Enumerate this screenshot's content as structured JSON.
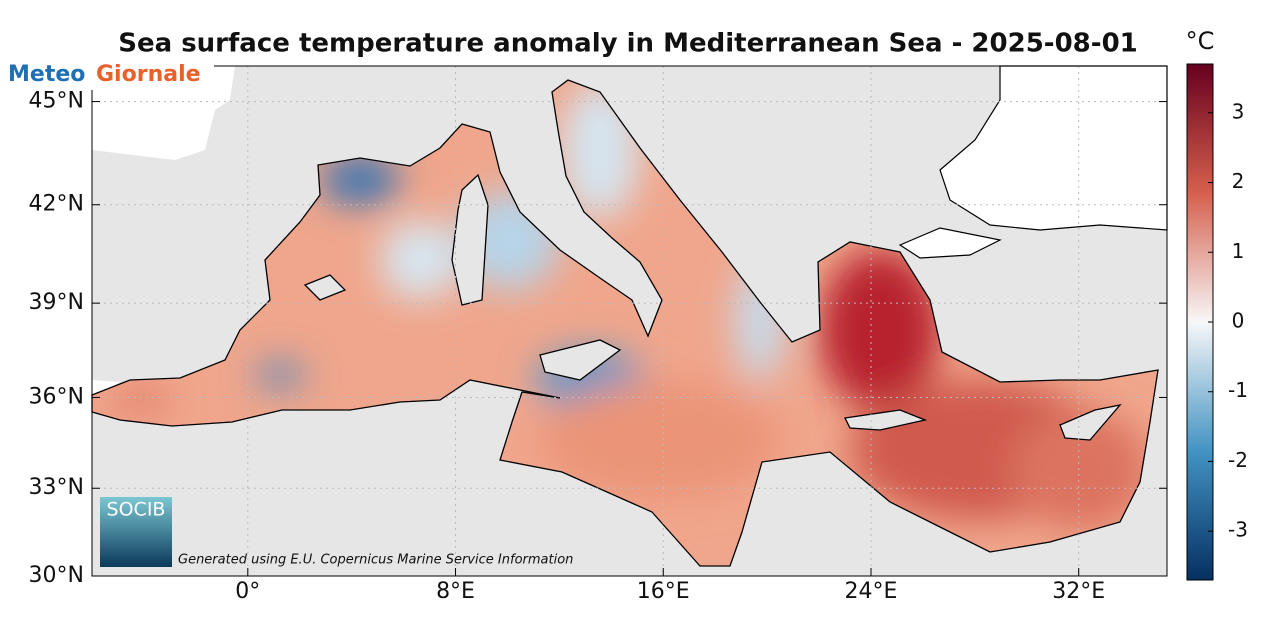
{
  "title": "Sea surface temperature anomaly in Mediterranean Sea - 2025-08-01",
  "logo": {
    "meteo": "Meteo",
    "giornale": "Giornale"
  },
  "map": {
    "projection": "mercator",
    "grid": true,
    "xlim": [
      -6,
      35.4
    ],
    "ylim": [
      30,
      46
    ],
    "xticks": [
      {
        "value": 0,
        "label": "0°"
      },
      {
        "value": 8,
        "label": "8°E"
      },
      {
        "value": 16,
        "label": "16°E"
      },
      {
        "value": 24,
        "label": "24°E"
      },
      {
        "value": 32,
        "label": "32°E"
      }
    ],
    "yticks": [
      {
        "value": 30,
        "label": "30°N"
      },
      {
        "value": 33,
        "label": "33°N"
      },
      {
        "value": 36,
        "label": "36°N"
      },
      {
        "value": 39,
        "label": "39°N"
      },
      {
        "value": 42,
        "label": "42°N"
      },
      {
        "value": 45,
        "label": "45°N"
      }
    ]
  },
  "colorbar": {
    "unit": "°C",
    "clim": [
      -3.7,
      3.7
    ],
    "ticks": [
      3,
      2,
      1,
      0,
      -1,
      -2,
      -3
    ],
    "colormap": [
      "#67001f",
      "#d6604d",
      "#f7f7f7",
      "#4393c3",
      "#053061"
    ]
  },
  "credit": {
    "socib": "SOCIB",
    "text": "Generated using E.U. Copernicus Marine Service Information"
  }
}
